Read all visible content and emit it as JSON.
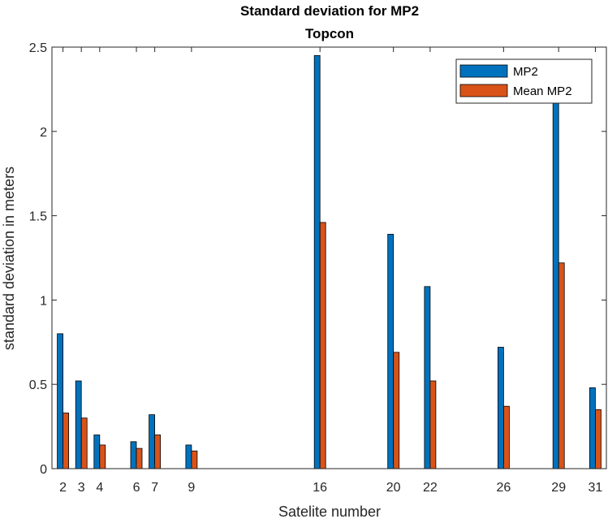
{
  "chart_data": {
    "type": "bar",
    "title": "Standard deviation for MP2",
    "subtitle": "Topcon",
    "xlabel": "Satelite number",
    "ylabel": "standard deviation in meters",
    "xlim": [
      1.4,
      31.6
    ],
    "ylim": [
      0,
      2.5
    ],
    "yticks": [
      "0",
      "0.5",
      "1",
      "1.5",
      "2",
      "2.5"
    ],
    "x": [
      2,
      3,
      4,
      6,
      7,
      9,
      16,
      20,
      22,
      26,
      29,
      31
    ],
    "xtick_labels": [
      "2",
      "3",
      "4",
      "6",
      "7",
      "9",
      "16",
      "20",
      "22",
      "26",
      "29",
      "31"
    ],
    "series": [
      {
        "name": "MP2",
        "color": "#0072BD",
        "values": [
          0.8,
          0.52,
          0.2,
          0.16,
          0.32,
          0.14,
          2.45,
          1.39,
          1.08,
          0.72,
          2.17,
          0.48
        ]
      },
      {
        "name": "Mean MP2",
        "color": "#D95319",
        "values": [
          0.33,
          0.3,
          0.14,
          0.12,
          0.2,
          0.105,
          1.46,
          0.69,
          0.52,
          0.37,
          1.22,
          0.35
        ]
      }
    ],
    "grid": false,
    "legend_position": "top-right"
  }
}
